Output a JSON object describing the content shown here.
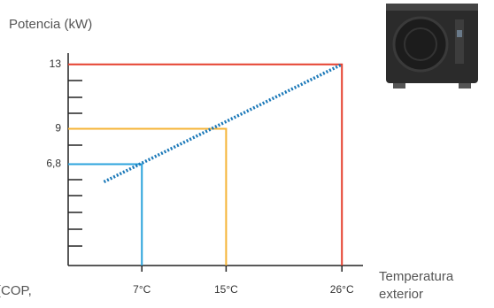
{
  "chart_data": {
    "type": "step-lines",
    "y_label": "Potencia (kW)",
    "x_label_lines": [
      "Temperatura",
      "exterior"
    ],
    "cut_text": "(COP,",
    "x": [
      7,
      15,
      26
    ],
    "x_labels": [
      "7°C",
      "15°C",
      "26°C"
    ],
    "values": [
      6.8,
      9,
      13
    ],
    "colors": [
      "#2ba3dc",
      "#f5b335",
      "#e5402e"
    ],
    "xlim": [
      0,
      28
    ],
    "ylim": [
      0.5,
      13.7
    ],
    "yticks": [
      {
        "value": 6.8,
        "label": "6,8"
      },
      9,
      13
    ],
    "trend": {
      "x": [
        3.4,
        26
      ],
      "values": [
        5.7,
        13
      ],
      "color": "#1a78b8"
    }
  }
}
